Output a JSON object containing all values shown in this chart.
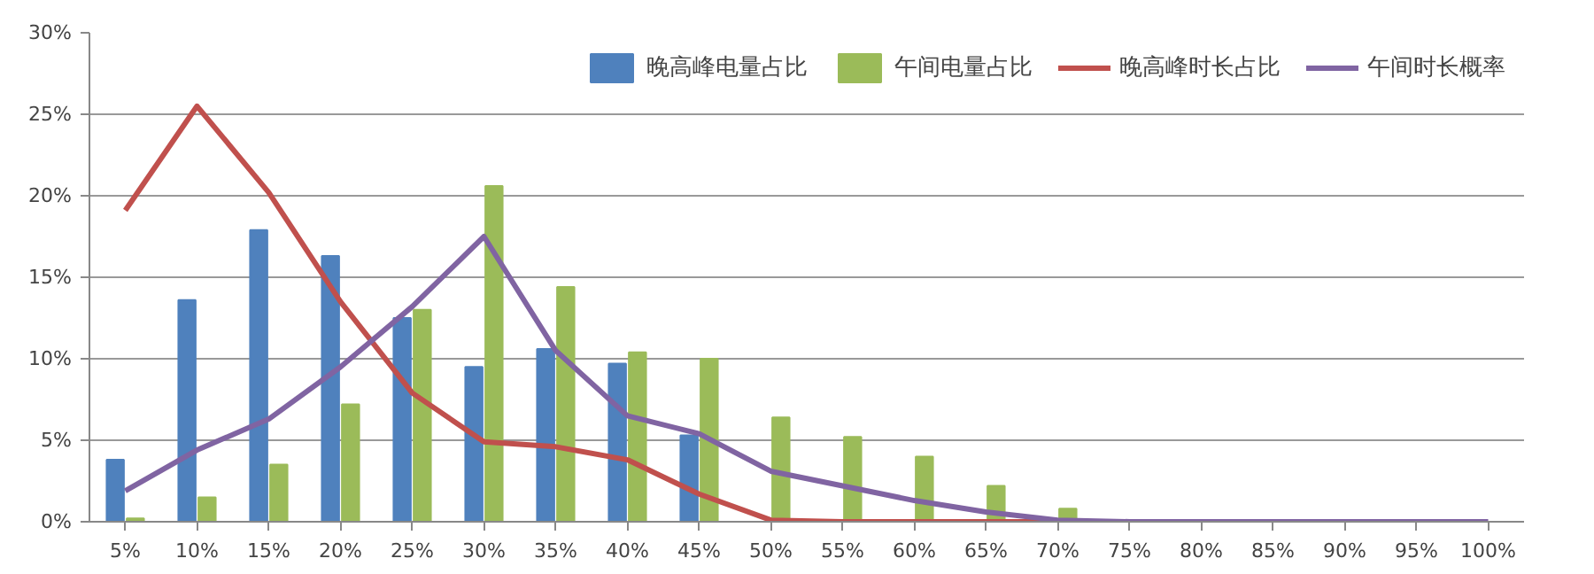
{
  "chart_data": {
    "type": "bar",
    "categories": [
      "5%",
      "10%",
      "15%",
      "20%",
      "25%",
      "30%",
      "35%",
      "40%",
      "45%",
      "50%",
      "55%",
      "60%",
      "65%",
      "70%",
      "75%",
      "80%",
      "85%",
      "90%",
      "95%",
      "100%"
    ],
    "series": [
      {
        "name": "晚高峰电量占比",
        "color": "#4f81bd",
        "values": [
          3.8,
          13.6,
          17.9,
          16.3,
          12.5,
          9.5,
          10.6,
          9.7,
          5.3,
          null,
          0,
          0,
          0,
          0,
          0,
          0,
          0,
          0,
          0,
          0
        ]
      },
      {
        "name": "午间电量占比",
        "color": "#9bbb59",
        "values": [
          0.2,
          1.5,
          3.5,
          7.2,
          13.0,
          20.6,
          14.4,
          10.4,
          10.0,
          6.4,
          5.2,
          4.0,
          2.2,
          0.8,
          0,
          0,
          0,
          0,
          0,
          0
        ]
      },
      {
        "name": "晚高峰时长占比",
        "type": "line",
        "color": "#c0504d",
        "values": [
          19.1,
          25.5,
          20.2,
          13.5,
          7.9,
          4.9,
          4.6,
          3.8,
          1.7,
          0.1,
          0,
          0,
          0,
          0,
          null,
          null,
          null,
          null,
          null,
          null
        ]
      },
      {
        "name": "午间时长概率",
        "type": "line",
        "color": "#8064a2",
        "values": [
          1.9,
          4.4,
          6.3,
          9.5,
          13.2,
          17.5,
          10.5,
          6.5,
          5.4,
          3.1,
          2.2,
          1.3,
          0.6,
          0.1,
          0,
          0,
          0,
          0,
          0,
          0
        ]
      }
    ],
    "ylim": [
      0,
      30
    ],
    "yticks": [
      {
        "value": 0,
        "label": "0%"
      },
      {
        "value": 5,
        "label": "5%"
      },
      {
        "value": 10,
        "label": "10%"
      },
      {
        "value": 15,
        "label": "15%"
      },
      {
        "value": 20,
        "label": "20%"
      },
      {
        "value": 25,
        "label": "25%"
      },
      {
        "value": 30,
        "label": "30%"
      }
    ],
    "grid": "y",
    "legend": "top right",
    "line_style": "solid"
  }
}
